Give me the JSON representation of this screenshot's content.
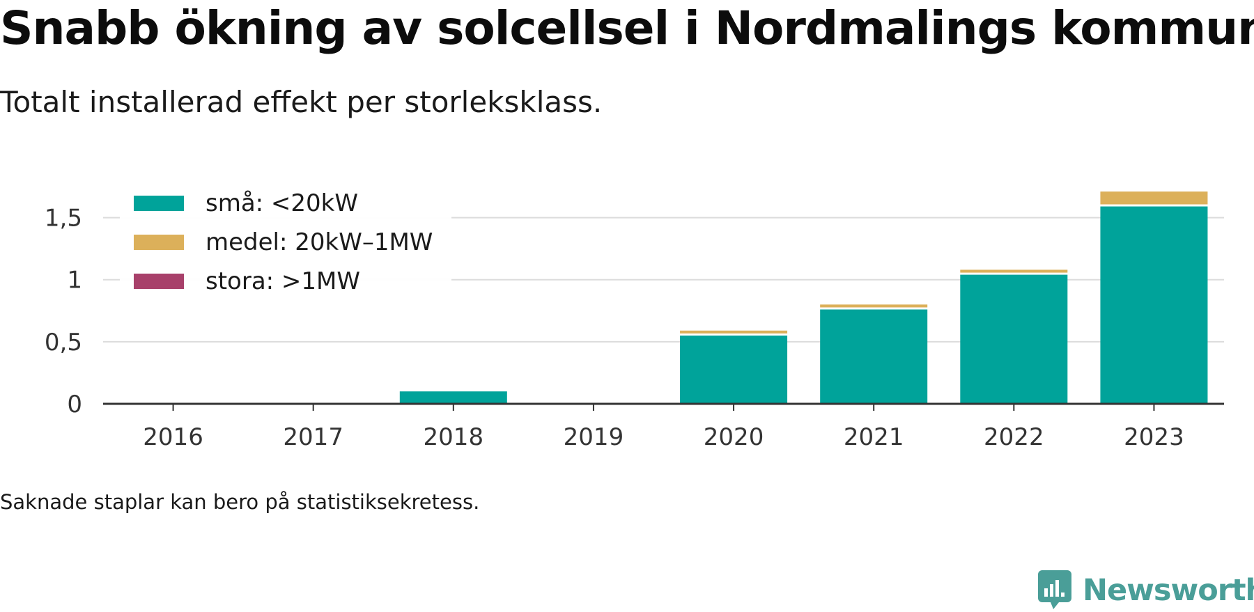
{
  "title": "Snabb ökning av solcellsel i Nordmalings kommun",
  "subtitle": "Totalt installerad effekt per storleksklass.",
  "footnote": "Saknade staplar kan bero på statistiksekretess.",
  "brand": {
    "name": "Newsworthy",
    "icon": "newsworthy-logo-icon"
  },
  "chart_data": {
    "type": "bar",
    "stacked": true,
    "categories": [
      "2016",
      "2017",
      "2018",
      "2019",
      "2020",
      "2021",
      "2022",
      "2023"
    ],
    "series": [
      {
        "name": "små: <20kW",
        "color": "#00a39a",
        "values": [
          null,
          null,
          0.1,
          null,
          0.55,
          0.76,
          1.04,
          1.59
        ]
      },
      {
        "name": "medel: 20kW–1MW",
        "color": "#dcb05a",
        "values": [
          null,
          null,
          0,
          null,
          0.04,
          0.04,
          0.04,
          0.12
        ]
      },
      {
        "name": "stora: >1MW",
        "color": "#a8406a",
        "values": [
          null,
          null,
          0,
          null,
          0,
          0,
          0,
          0
        ]
      }
    ],
    "ylim": [
      0,
      1.75
    ],
    "yticks": [
      {
        "value": 0,
        "label": "0"
      },
      {
        "value": 0.5,
        "label": "0,5"
      },
      {
        "value": 1,
        "label": "1"
      },
      {
        "value": 1.5,
        "label": "1,5"
      }
    ],
    "grid": true,
    "legend_position": "top-left",
    "xlabel": "",
    "ylabel": ""
  }
}
